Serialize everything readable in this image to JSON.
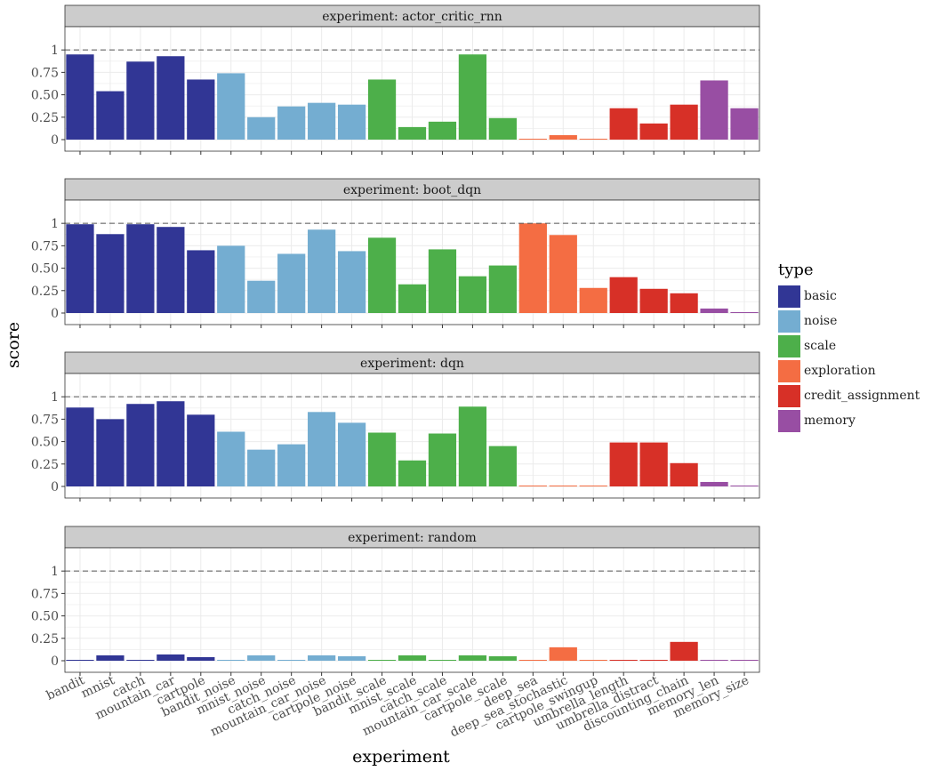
{
  "chart_data": {
    "type": "bar",
    "facet_prefix": "experiment: ",
    "xlabel": "experiment",
    "ylabel": "score",
    "ylim": [
      0,
      1.2
    ],
    "yticks": [
      0,
      0.25,
      0.5,
      0.75,
      1
    ],
    "ytick_labels": [
      "0",
      "0.25",
      "0.50",
      "0.75",
      "1"
    ],
    "reference_line": 1,
    "grid": true,
    "legend_title": "type",
    "legend_position": "right",
    "types": [
      {
        "name": "basic",
        "color": "#313695"
      },
      {
        "name": "noise",
        "color": "#74add1"
      },
      {
        "name": "scale",
        "color": "#4daf4a"
      },
      {
        "name": "exploration",
        "color": "#f46d43"
      },
      {
        "name": "credit_assignment",
        "color": "#d73027"
      },
      {
        "name": "memory",
        "color": "#984ea3"
      }
    ],
    "categories": [
      "bandit",
      "mnist",
      "catch",
      "mountain_car",
      "cartpole",
      "bandit_noise",
      "mnist_noise",
      "catch_noise",
      "mountain_car_noise",
      "cartpole_noise",
      "bandit_scale",
      "mnist_scale",
      "catch_scale",
      "mountain_car_scale",
      "cartpole_scale",
      "deep_sea",
      "deep_sea_stochastic",
      "cartpole_swingup",
      "umbrella_length",
      "umbrella_distract",
      "discounting_chain",
      "memory_len",
      "memory_size"
    ],
    "category_types": [
      "basic",
      "basic",
      "basic",
      "basic",
      "basic",
      "noise",
      "noise",
      "noise",
      "noise",
      "noise",
      "scale",
      "scale",
      "scale",
      "scale",
      "scale",
      "exploration",
      "exploration",
      "exploration",
      "credit_assignment",
      "credit_assignment",
      "credit_assignment",
      "memory",
      "memory"
    ],
    "facets": [
      {
        "experiment": "actor_critic_rnn",
        "values": [
          0.95,
          0.54,
          0.87,
          0.93,
          0.67,
          0.74,
          0.25,
          0.37,
          0.41,
          0.39,
          0.67,
          0.14,
          0.2,
          0.95,
          0.24,
          0.01,
          0.05,
          0.01,
          0.35,
          0.18,
          0.39,
          0.66,
          0.35
        ]
      },
      {
        "experiment": "boot_dqn",
        "values": [
          0.99,
          0.88,
          0.99,
          0.96,
          0.7,
          0.75,
          0.36,
          0.66,
          0.93,
          0.69,
          0.84,
          0.32,
          0.71,
          0.41,
          0.53,
          1.0,
          0.87,
          0.28,
          0.4,
          0.27,
          0.22,
          0.05,
          0.01
        ]
      },
      {
        "experiment": "dqn",
        "values": [
          0.88,
          0.75,
          0.92,
          0.95,
          0.8,
          0.61,
          0.41,
          0.47,
          0.83,
          0.71,
          0.6,
          0.29,
          0.59,
          0.89,
          0.45,
          0.01,
          0.01,
          0.01,
          0.49,
          0.49,
          0.26,
          0.05,
          0.01
        ]
      },
      {
        "experiment": "random",
        "values": [
          0.01,
          0.06,
          0.01,
          0.07,
          0.04,
          0.01,
          0.06,
          0.01,
          0.06,
          0.05,
          0.01,
          0.06,
          0.01,
          0.06,
          0.05,
          0.01,
          0.15,
          0.01,
          0.01,
          0.01,
          0.21,
          0.01,
          0.01
        ]
      }
    ]
  }
}
